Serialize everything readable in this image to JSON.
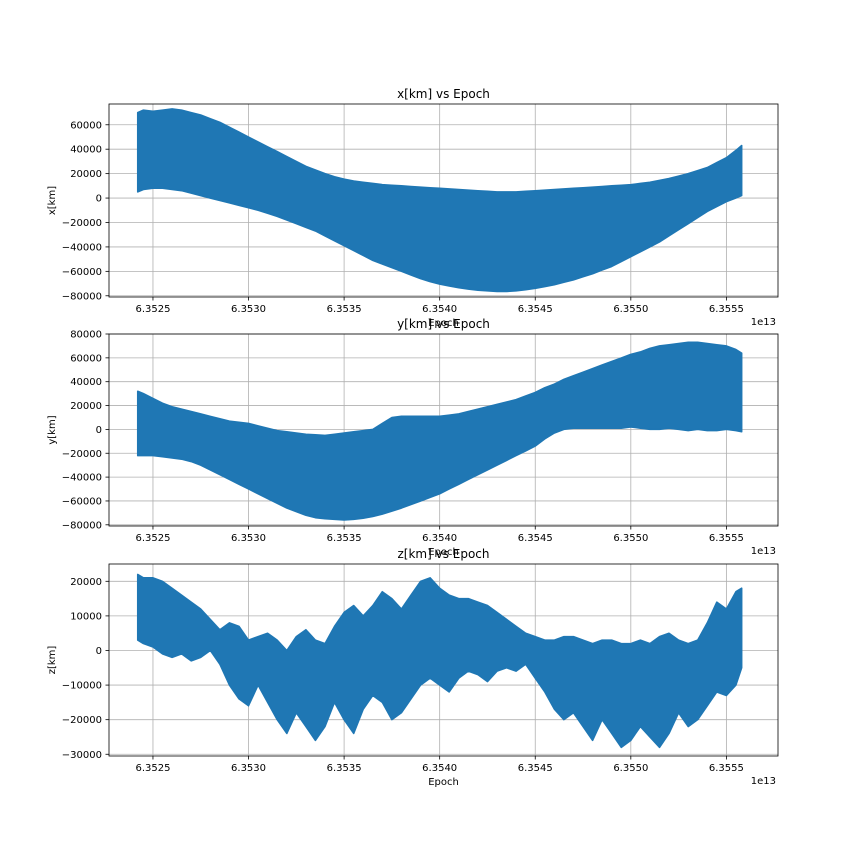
{
  "colors": {
    "series": "#1f77b4",
    "grid": "#b0b0b0",
    "axes": "#000000"
  },
  "chart_data": [
    {
      "type": "area",
      "title": "x[km] vs Epoch",
      "xlabel": "Epoch",
      "ylabel": "x[km]",
      "x_offset_label": "1e13",
      "x_unit_scale": 10000000000000.0,
      "xlim": [
        6.35227,
        6.35577
      ],
      "ylim": [
        -81000,
        77000
      ],
      "grid": true,
      "x_ticks": [
        6.3525,
        6.353,
        6.3535,
        6.354,
        6.3545,
        6.355,
        6.3555
      ],
      "x_tick_labels": [
        "6.3525",
        "6.3530",
        "6.3535",
        "6.3540",
        "6.3545",
        "6.3550",
        "6.3555"
      ],
      "y_ticks": [
        -80000,
        -60000,
        -40000,
        -20000,
        0,
        20000,
        40000,
        60000
      ],
      "y_tick_labels": [
        "−80000",
        "−60000",
        "−40000",
        "−20000",
        "0",
        "20000",
        "40000",
        "60000"
      ],
      "series": [
        {
          "epoch": [
            6.35242,
            6.35245,
            6.3525,
            6.35255,
            6.3526,
            6.35265,
            6.3527,
            6.35275,
            6.3528,
            6.35285,
            6.3529,
            6.35295,
            6.353,
            6.35305,
            6.3531,
            6.35315,
            6.3532,
            6.35325,
            6.3533,
            6.35335,
            6.3534,
            6.35345,
            6.3535,
            6.35355,
            6.3536,
            6.35365,
            6.3537,
            6.35375,
            6.3538,
            6.35385,
            6.3539,
            6.35395,
            6.354,
            6.35405,
            6.3541,
            6.35415,
            6.3542,
            6.35425,
            6.3543,
            6.35435,
            6.3544,
            6.35445,
            6.3545,
            6.35455,
            6.3546,
            6.35465,
            6.3547,
            6.35475,
            6.3548,
            6.35485,
            6.3549,
            6.35495,
            6.355,
            6.35505,
            6.3551,
            6.35515,
            6.3552,
            6.35525,
            6.3553,
            6.35535,
            6.3554,
            6.35545,
            6.3555,
            6.35555,
            6.35558
          ],
          "upper": [
            70000,
            72000,
            71000,
            72000,
            73000,
            72000,
            70000,
            68000,
            65000,
            62000,
            58000,
            54000,
            50000,
            46000,
            42000,
            38000,
            34000,
            30000,
            26000,
            23000,
            20000,
            17500,
            15500,
            14000,
            13000,
            12000,
            11000,
            10500,
            10000,
            9500,
            9000,
            8500,
            8000,
            7500,
            7000,
            6500,
            6000,
            5500,
            5000,
            5000,
            5000,
            5500,
            6000,
            6500,
            7000,
            7500,
            8000,
            8500,
            9000,
            9500,
            10000,
            10500,
            11000,
            12000,
            13000,
            14500,
            16000,
            18000,
            20000,
            22500,
            25000,
            29000,
            33000,
            39000,
            43000
          ],
          "lower": [
            5000,
            7000,
            8000,
            8000,
            7000,
            6000,
            4000,
            2000,
            0,
            -2000,
            -4000,
            -6000,
            -8000,
            -10000,
            -12500,
            -15000,
            -18000,
            -21000,
            -24000,
            -27000,
            -31000,
            -35000,
            -39000,
            -43000,
            -47000,
            -51000,
            -54000,
            -57000,
            -60000,
            -63000,
            -66000,
            -68500,
            -70500,
            -72000,
            -73500,
            -74500,
            -75500,
            -76000,
            -76500,
            -76500,
            -76000,
            -75000,
            -74000,
            -72500,
            -71000,
            -69000,
            -67000,
            -64500,
            -62000,
            -59000,
            -56000,
            -52000,
            -48000,
            -44000,
            -40000,
            -36000,
            -31000,
            -26000,
            -21000,
            -16000,
            -11000,
            -7000,
            -3000,
            0,
            2000
          ]
        }
      ]
    },
    {
      "type": "area",
      "title": "y[km] vs Epoch",
      "xlabel": "Epoch",
      "ylabel": "y[km]",
      "x_offset_label": "1e13",
      "x_unit_scale": 10000000000000.0,
      "xlim": [
        6.35227,
        6.35577
      ],
      "ylim": [
        -81000,
        80000
      ],
      "grid": true,
      "x_ticks": [
        6.3525,
        6.353,
        6.3535,
        6.354,
        6.3545,
        6.355,
        6.3555
      ],
      "x_tick_labels": [
        "6.3525",
        "6.3530",
        "6.3535",
        "6.3540",
        "6.3545",
        "6.3550",
        "6.3555"
      ],
      "y_ticks": [
        -80000,
        -60000,
        -40000,
        -20000,
        0,
        20000,
        40000,
        60000,
        80000
      ],
      "y_tick_labels": [
        "−80000",
        "−60000",
        "−40000",
        "−20000",
        "0",
        "20000",
        "40000",
        "60000",
        "80000"
      ],
      "series": [
        {
          "epoch": [
            6.35242,
            6.35245,
            6.3525,
            6.35255,
            6.3526,
            6.35265,
            6.3527,
            6.35275,
            6.3528,
            6.35285,
            6.3529,
            6.35295,
            6.353,
            6.35305,
            6.3531,
            6.35315,
            6.3532,
            6.35325,
            6.3533,
            6.35335,
            6.3534,
            6.35345,
            6.3535,
            6.35355,
            6.3536,
            6.35365,
            6.3537,
            6.35375,
            6.3538,
            6.35385,
            6.3539,
            6.35395,
            6.354,
            6.35405,
            6.3541,
            6.35415,
            6.3542,
            6.35425,
            6.3543,
            6.35435,
            6.3544,
            6.35445,
            6.3545,
            6.35455,
            6.3546,
            6.35465,
            6.3547,
            6.35475,
            6.3548,
            6.35485,
            6.3549,
            6.35495,
            6.355,
            6.35505,
            6.3551,
            6.35515,
            6.3552,
            6.35525,
            6.3553,
            6.35535,
            6.3554,
            6.35545,
            6.3555,
            6.35555,
            6.35558
          ],
          "upper": [
            32000,
            30000,
            26000,
            22000,
            19000,
            17000,
            15000,
            13000,
            11000,
            9000,
            7000,
            6000,
            5000,
            3000,
            1000,
            -1000,
            -2000,
            -3000,
            -4000,
            -4500,
            -5000,
            -4000,
            -3000,
            -2000,
            -1000,
            0,
            5000,
            10000,
            11000,
            11000,
            11000,
            11000,
            11000,
            12000,
            13000,
            15000,
            17000,
            19000,
            21000,
            23000,
            25000,
            28000,
            31000,
            35000,
            38000,
            42000,
            45000,
            48000,
            51000,
            54000,
            57000,
            60000,
            63000,
            65000,
            68000,
            70000,
            71000,
            72000,
            73000,
            73000,
            72000,
            71000,
            70000,
            67000,
            64000
          ],
          "lower": [
            -22000,
            -22000,
            -22000,
            -23000,
            -24000,
            -25000,
            -27000,
            -30000,
            -34000,
            -38000,
            -42000,
            -46000,
            -50000,
            -54000,
            -58000,
            -62000,
            -66000,
            -69000,
            -72000,
            -74000,
            -75000,
            -75500,
            -76000,
            -75500,
            -74500,
            -73000,
            -71000,
            -68500,
            -66000,
            -63000,
            -60000,
            -57000,
            -54000,
            -50000,
            -46000,
            -42000,
            -38000,
            -34000,
            -30000,
            -26000,
            -22000,
            -18000,
            -14000,
            -8000,
            -3000,
            0,
            1000,
            1000,
            1000,
            1000,
            1000,
            1000,
            2000,
            1000,
            0,
            0,
            1000,
            0,
            -1000,
            0,
            -1000,
            -1000,
            0,
            -1000,
            -2000
          ]
        }
      ]
    },
    {
      "type": "area",
      "title": "z[km] vs Epoch",
      "xlabel": "Epoch",
      "ylabel": "z[km]",
      "x_offset_label": "1e13",
      "x_unit_scale": 10000000000000.0,
      "xlim": [
        6.35227,
        6.35577
      ],
      "ylim": [
        -30500,
        25000
      ],
      "grid": true,
      "x_ticks": [
        6.3525,
        6.353,
        6.3535,
        6.354,
        6.3545,
        6.355,
        6.3555
      ],
      "x_tick_labels": [
        "6.3525",
        "6.3530",
        "6.3535",
        "6.3540",
        "6.3545",
        "6.3550",
        "6.3555"
      ],
      "y_ticks": [
        -30000,
        -20000,
        -10000,
        0,
        10000,
        20000
      ],
      "y_tick_labels": [
        "−30000",
        "−20000",
        "−10000",
        "0",
        "10000",
        "20000"
      ],
      "series": [
        {
          "epoch": [
            6.35242,
            6.35245,
            6.3525,
            6.35255,
            6.3526,
            6.35265,
            6.3527,
            6.35275,
            6.3528,
            6.35285,
            6.3529,
            6.35295,
            6.353,
            6.35305,
            6.3531,
            6.35315,
            6.3532,
            6.35325,
            6.3533,
            6.35335,
            6.3534,
            6.35345,
            6.3535,
            6.35355,
            6.3536,
            6.35365,
            6.3537,
            6.35375,
            6.3538,
            6.35385,
            6.3539,
            6.35395,
            6.354,
            6.35405,
            6.3541,
            6.35415,
            6.3542,
            6.35425,
            6.3543,
            6.35435,
            6.3544,
            6.35445,
            6.3545,
            6.35455,
            6.3546,
            6.35465,
            6.3547,
            6.35475,
            6.3548,
            6.35485,
            6.3549,
            6.35495,
            6.355,
            6.35505,
            6.3551,
            6.35515,
            6.3552,
            6.35525,
            6.3553,
            6.35535,
            6.3554,
            6.35545,
            6.3555,
            6.35555,
            6.35558
          ],
          "upper": [
            22000,
            21000,
            21000,
            20000,
            18000,
            16000,
            14000,
            12000,
            9000,
            6000,
            8000,
            7000,
            3000,
            4000,
            5000,
            3000,
            0,
            4000,
            6000,
            3000,
            2000,
            7000,
            11000,
            13000,
            10000,
            13000,
            17000,
            15000,
            12000,
            16000,
            20000,
            21000,
            18000,
            16000,
            15000,
            15000,
            14000,
            13000,
            11000,
            9000,
            7000,
            5000,
            4000,
            3000,
            3000,
            4000,
            4000,
            3000,
            2000,
            3000,
            3000,
            2000,
            2000,
            3000,
            2000,
            4000,
            5000,
            3000,
            2000,
            3000,
            8000,
            14000,
            12000,
            17000,
            18000
          ],
          "lower": [
            3000,
            2000,
            1000,
            -1000,
            -2000,
            -1000,
            -3000,
            -2000,
            0,
            -4000,
            -10000,
            -14000,
            -16000,
            -10000,
            -15000,
            -20000,
            -24000,
            -18000,
            -22000,
            -26000,
            -22000,
            -15000,
            -20000,
            -24000,
            -17000,
            -13000,
            -15000,
            -20000,
            -18000,
            -14000,
            -10000,
            -8000,
            -10000,
            -12000,
            -8000,
            -6000,
            -7000,
            -9000,
            -6000,
            -5000,
            -6000,
            -4000,
            -8000,
            -12000,
            -17000,
            -20000,
            -18000,
            -22000,
            -26000,
            -20000,
            -24000,
            -28000,
            -26000,
            -22000,
            -25000,
            -28000,
            -24000,
            -18000,
            -22000,
            -20000,
            -16000,
            -12000,
            -13000,
            -10000,
            -5000
          ]
        }
      ]
    }
  ]
}
